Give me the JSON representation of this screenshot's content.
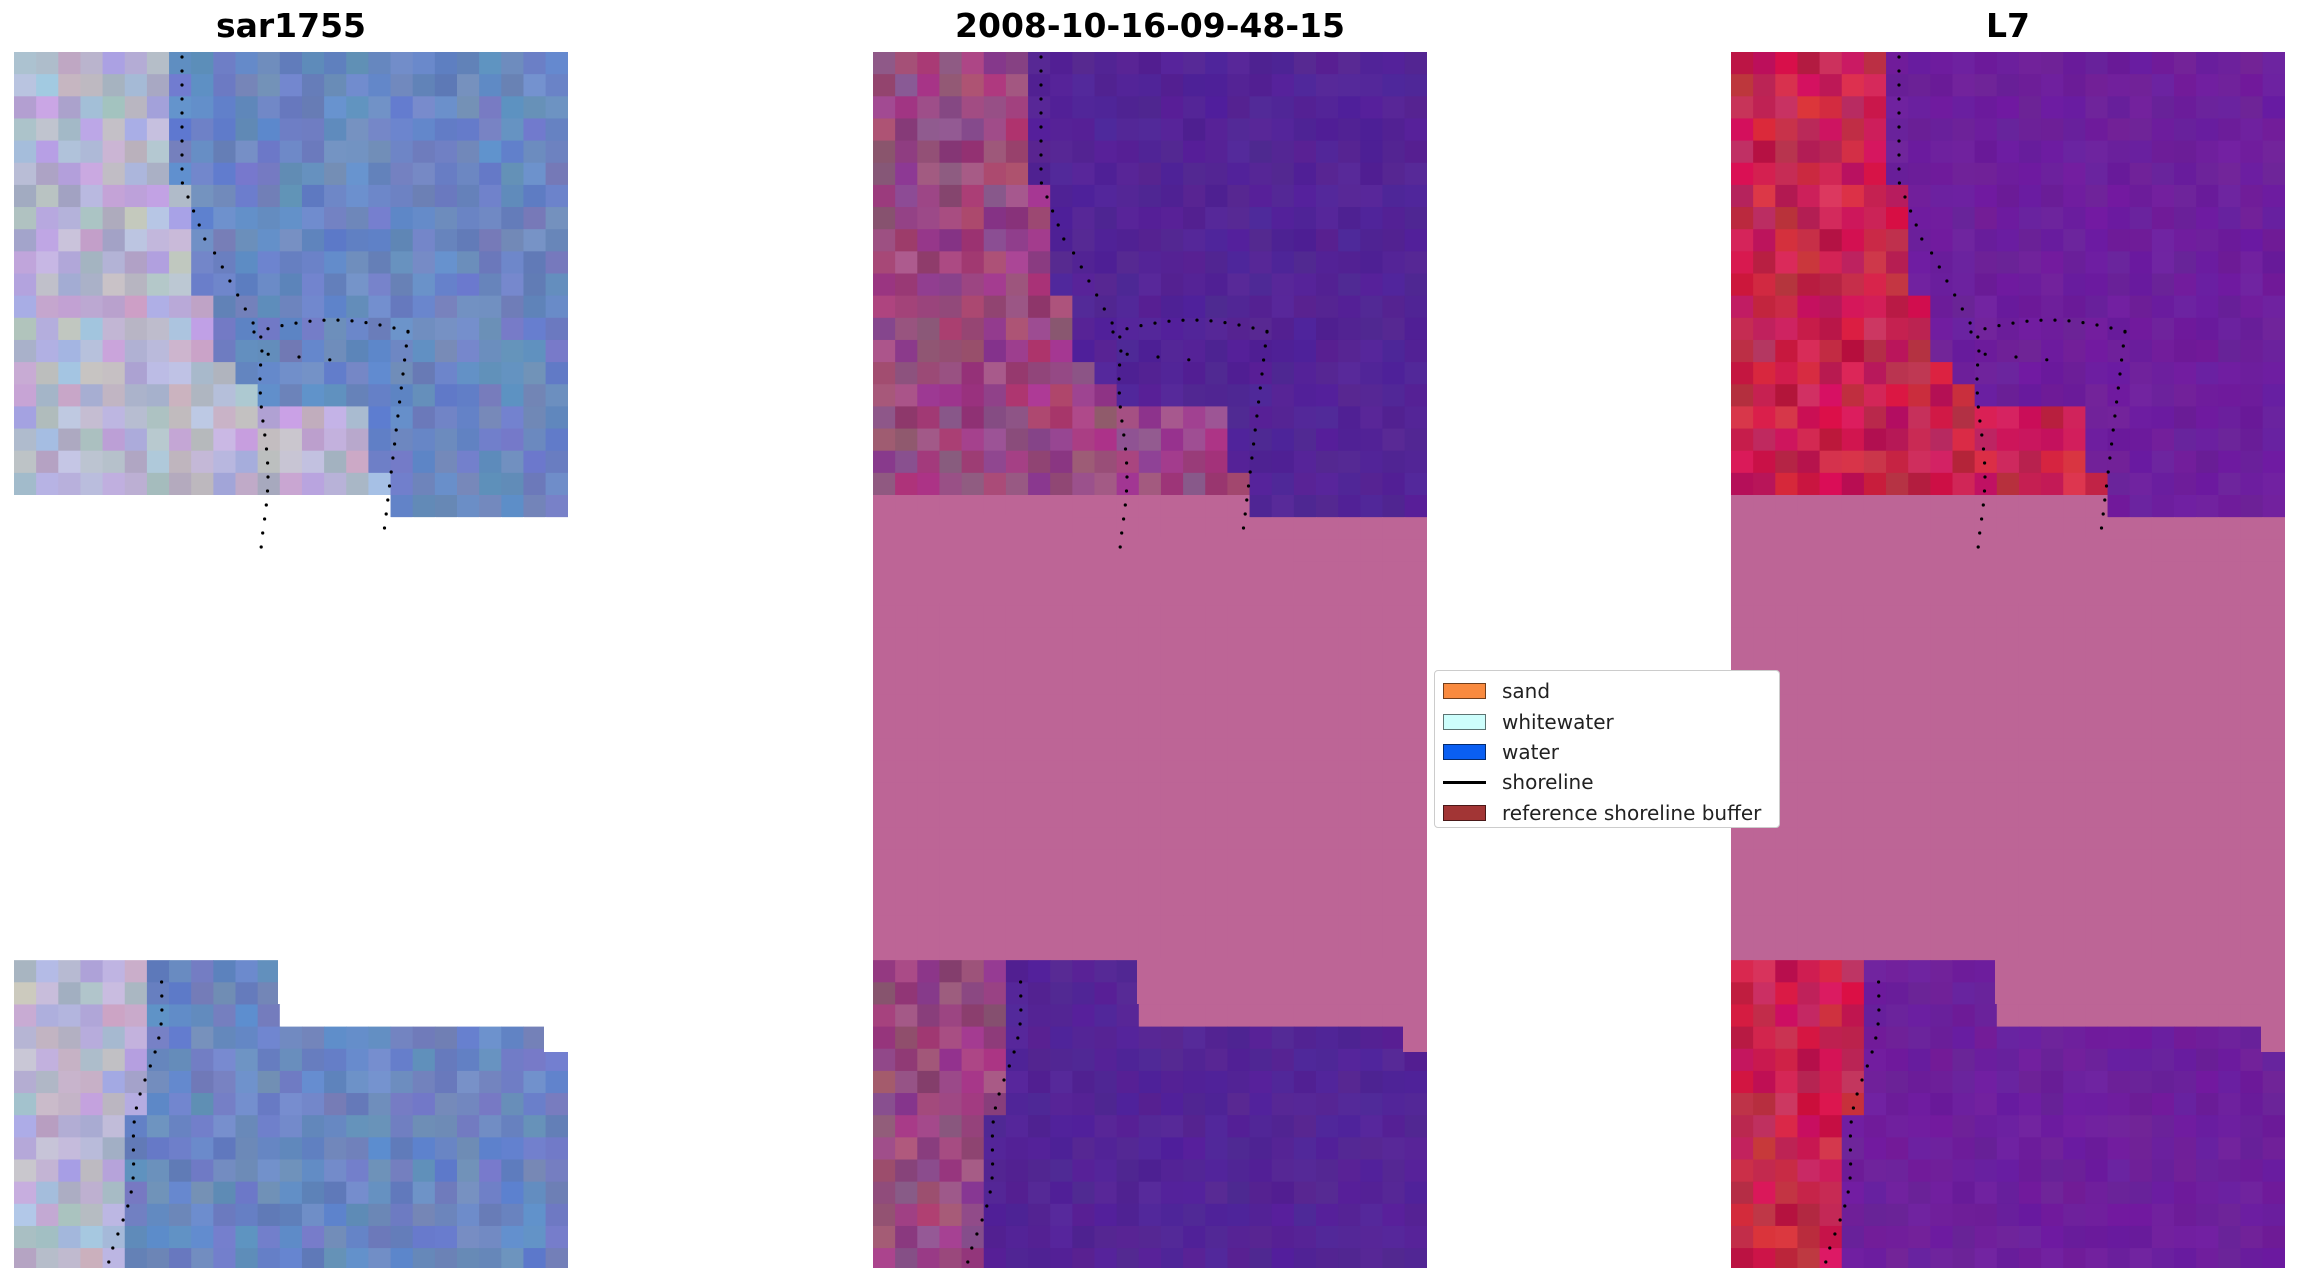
{
  "figure": {
    "panels": [
      {
        "id": "rgb",
        "title": "sar1755"
      },
      {
        "id": "classified",
        "title": "2008-10-16-09-48-15"
      },
      {
        "id": "index",
        "title": "L7"
      }
    ]
  },
  "legend": {
    "items": [
      {
        "label": "sand",
        "color": "#f98a3f",
        "kind": "patch"
      },
      {
        "label": "whitewater",
        "color": "#cdfefc",
        "kind": "patch"
      },
      {
        "label": "water",
        "color": "#0a5ff2",
        "kind": "patch"
      },
      {
        "label": "shoreline",
        "color": "#000000",
        "kind": "line"
      },
      {
        "label": "reference shoreline buffer",
        "color": "#a23535",
        "kind": "patch"
      }
    ]
  },
  "colors": {
    "buffer_overlay": "#bd6596",
    "classified_water": "#532496",
    "classified_land": "#9a4780",
    "index_land": "#c7234f",
    "index_water": "#6d1f9c",
    "rgb_water": "#6a86c2",
    "rgb_land": "#b7b4d2"
  }
}
